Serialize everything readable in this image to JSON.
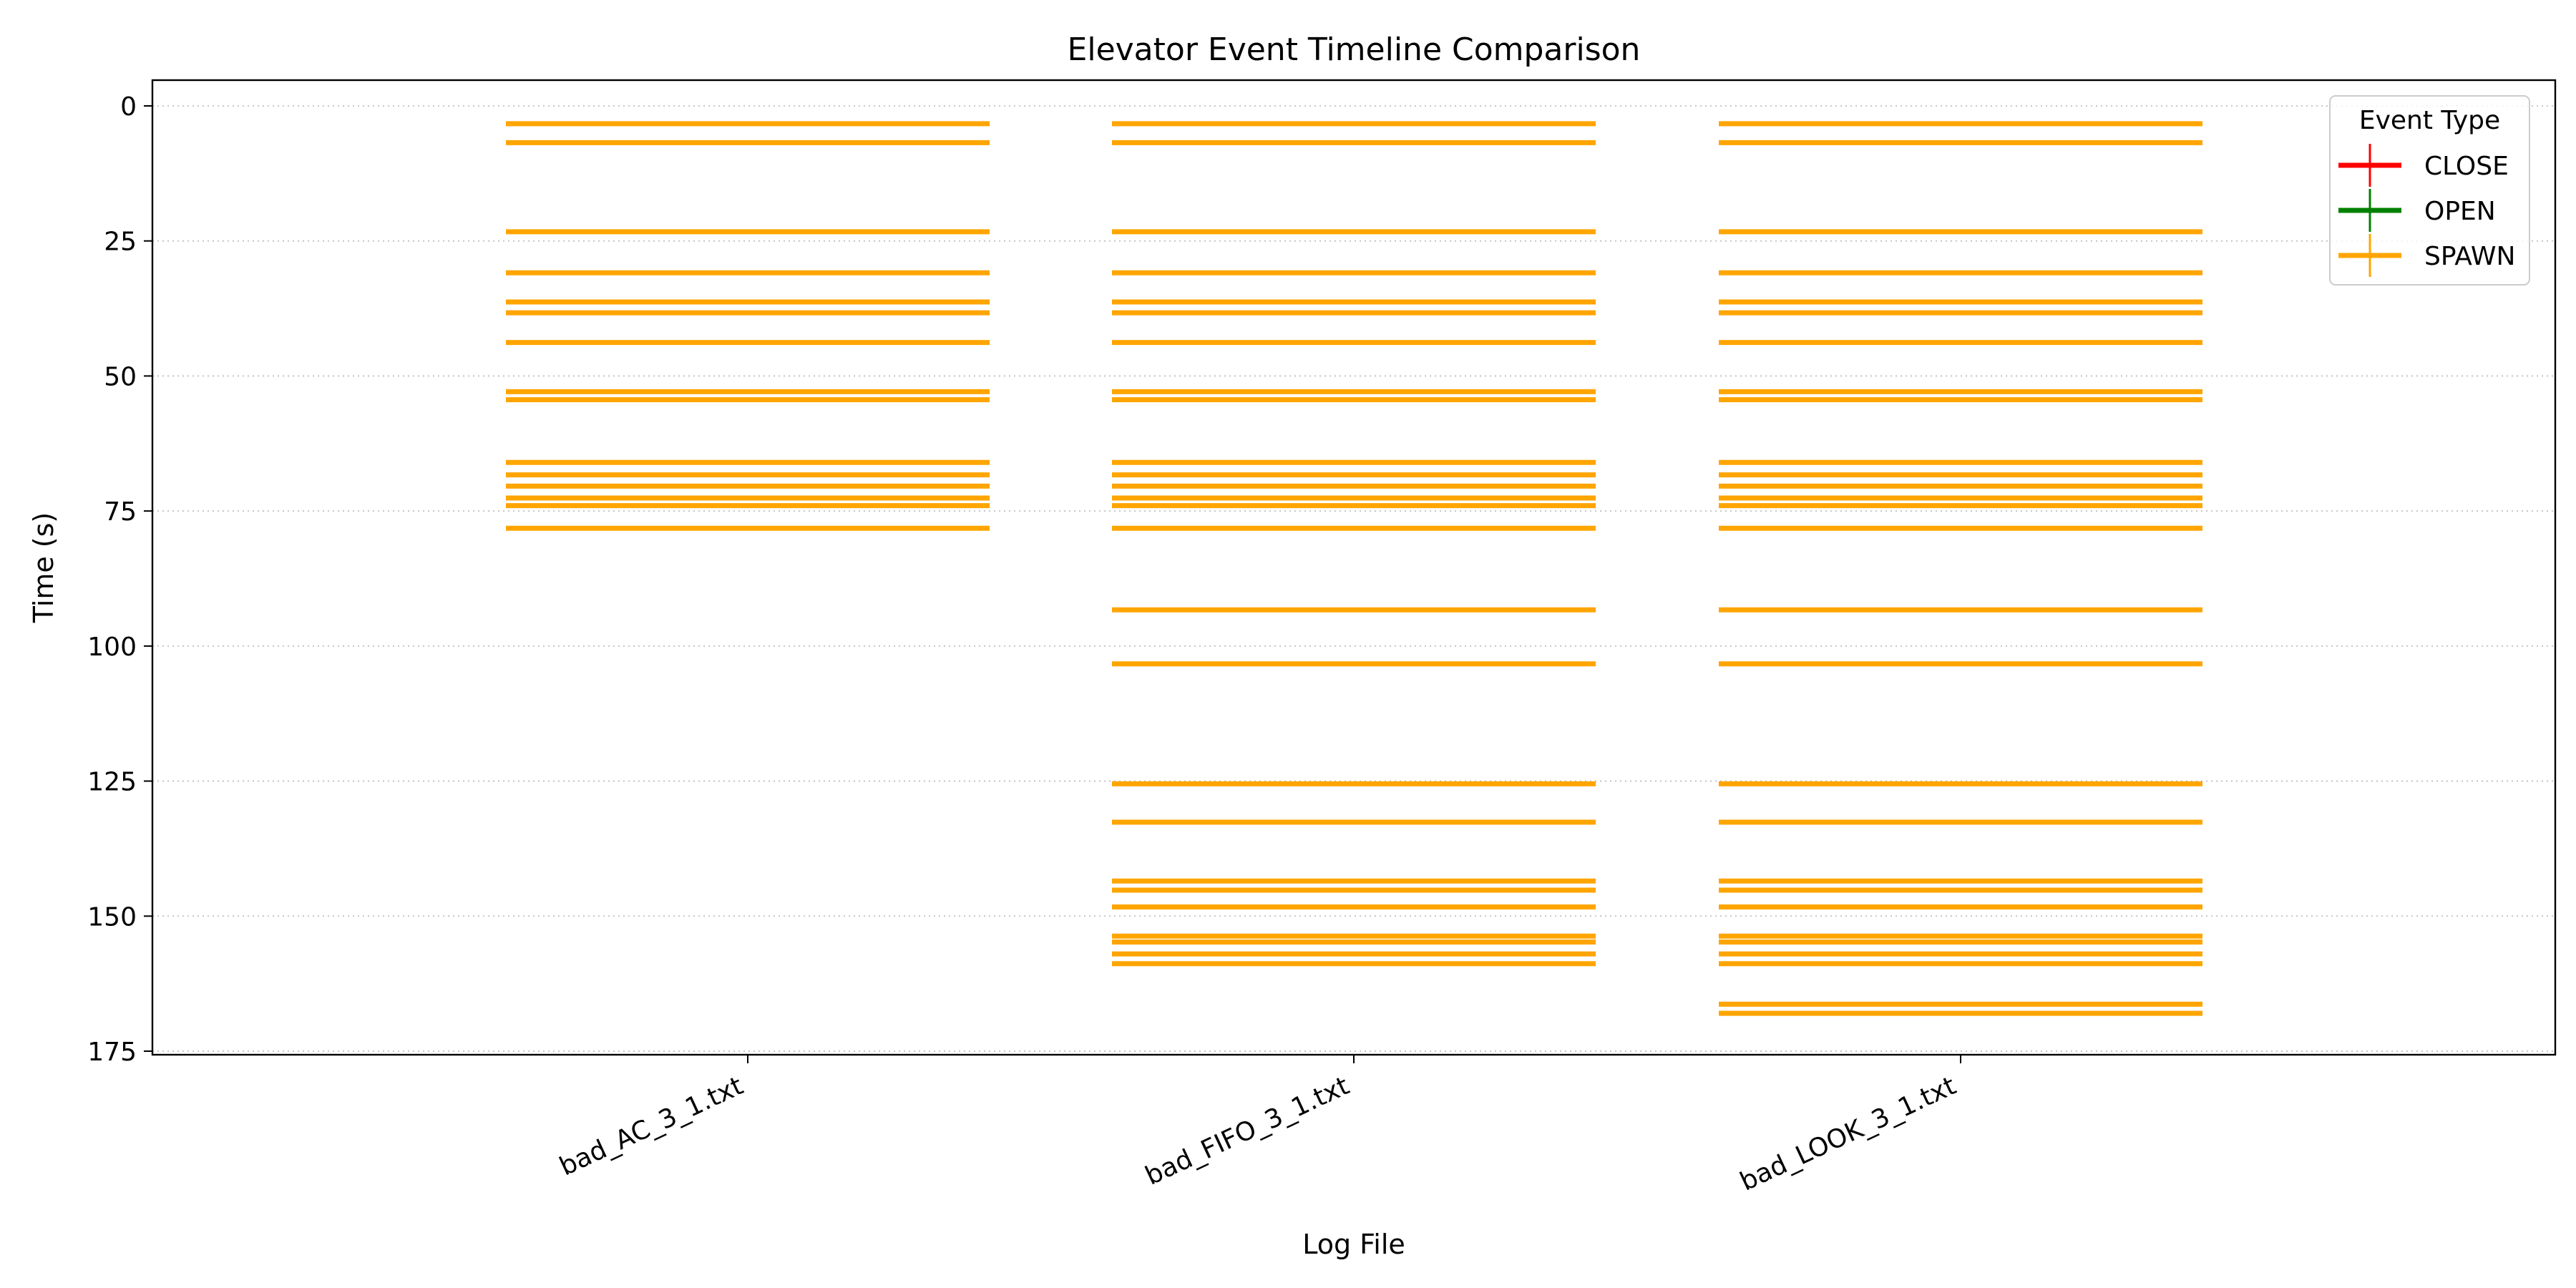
{
  "chart_data": {
    "type": "eventplot",
    "title": "Elevator Event Timeline Comparison",
    "xlabel": "Log File",
    "ylabel": "Time (s)",
    "categories": [
      "bad_AC_3_1.txt",
      "bad_FIFO_3_1.txt",
      "bad_LOOK_3_1.txt"
    ],
    "ylim": [
      175,
      -5
    ],
    "yticks": [
      0,
      25,
      50,
      75,
      100,
      125,
      150,
      175
    ],
    "y_inverted": true,
    "grid": "y, dotted",
    "legend": {
      "title": "Event Type",
      "position": "top-right",
      "entries": [
        {
          "label": "CLOSE",
          "color": "#ff0000"
        },
        {
          "label": "OPEN",
          "color": "#008000"
        },
        {
          "label": "SPAWN",
          "color": "#ffa500"
        }
      ]
    },
    "series": [
      {
        "name": "SPAWN",
        "color": "#ffa500",
        "events": [
          [
            3.3,
            6.8,
            23.3,
            30.9,
            36.3,
            38.3,
            43.8,
            52.9,
            54.4,
            66.0,
            68.3,
            70.4,
            72.6,
            74.0,
            78.2
          ],
          [
            3.3,
            6.8,
            23.3,
            30.9,
            36.3,
            38.3,
            43.8,
            52.9,
            54.4,
            66.0,
            68.3,
            70.4,
            72.6,
            74.0,
            78.2,
            93.3,
            103.3,
            125.5,
            132.6,
            143.5,
            145.2,
            148.3,
            153.7,
            154.8,
            157.0,
            158.8
          ],
          [
            3.3,
            6.8,
            23.3,
            30.9,
            36.3,
            38.3,
            43.8,
            52.9,
            54.4,
            66.0,
            68.3,
            70.4,
            72.6,
            74.0,
            78.2,
            93.3,
            103.3,
            125.5,
            132.6,
            143.5,
            145.2,
            148.3,
            153.7,
            154.8,
            157.0,
            158.8,
            166.3,
            168.0
          ]
        ]
      },
      {
        "name": "OPEN",
        "color": "#008000",
        "events": [
          [],
          [],
          []
        ]
      },
      {
        "name": "CLOSE",
        "color": "#ff0000",
        "events": [
          [],
          [],
          []
        ]
      }
    ]
  }
}
